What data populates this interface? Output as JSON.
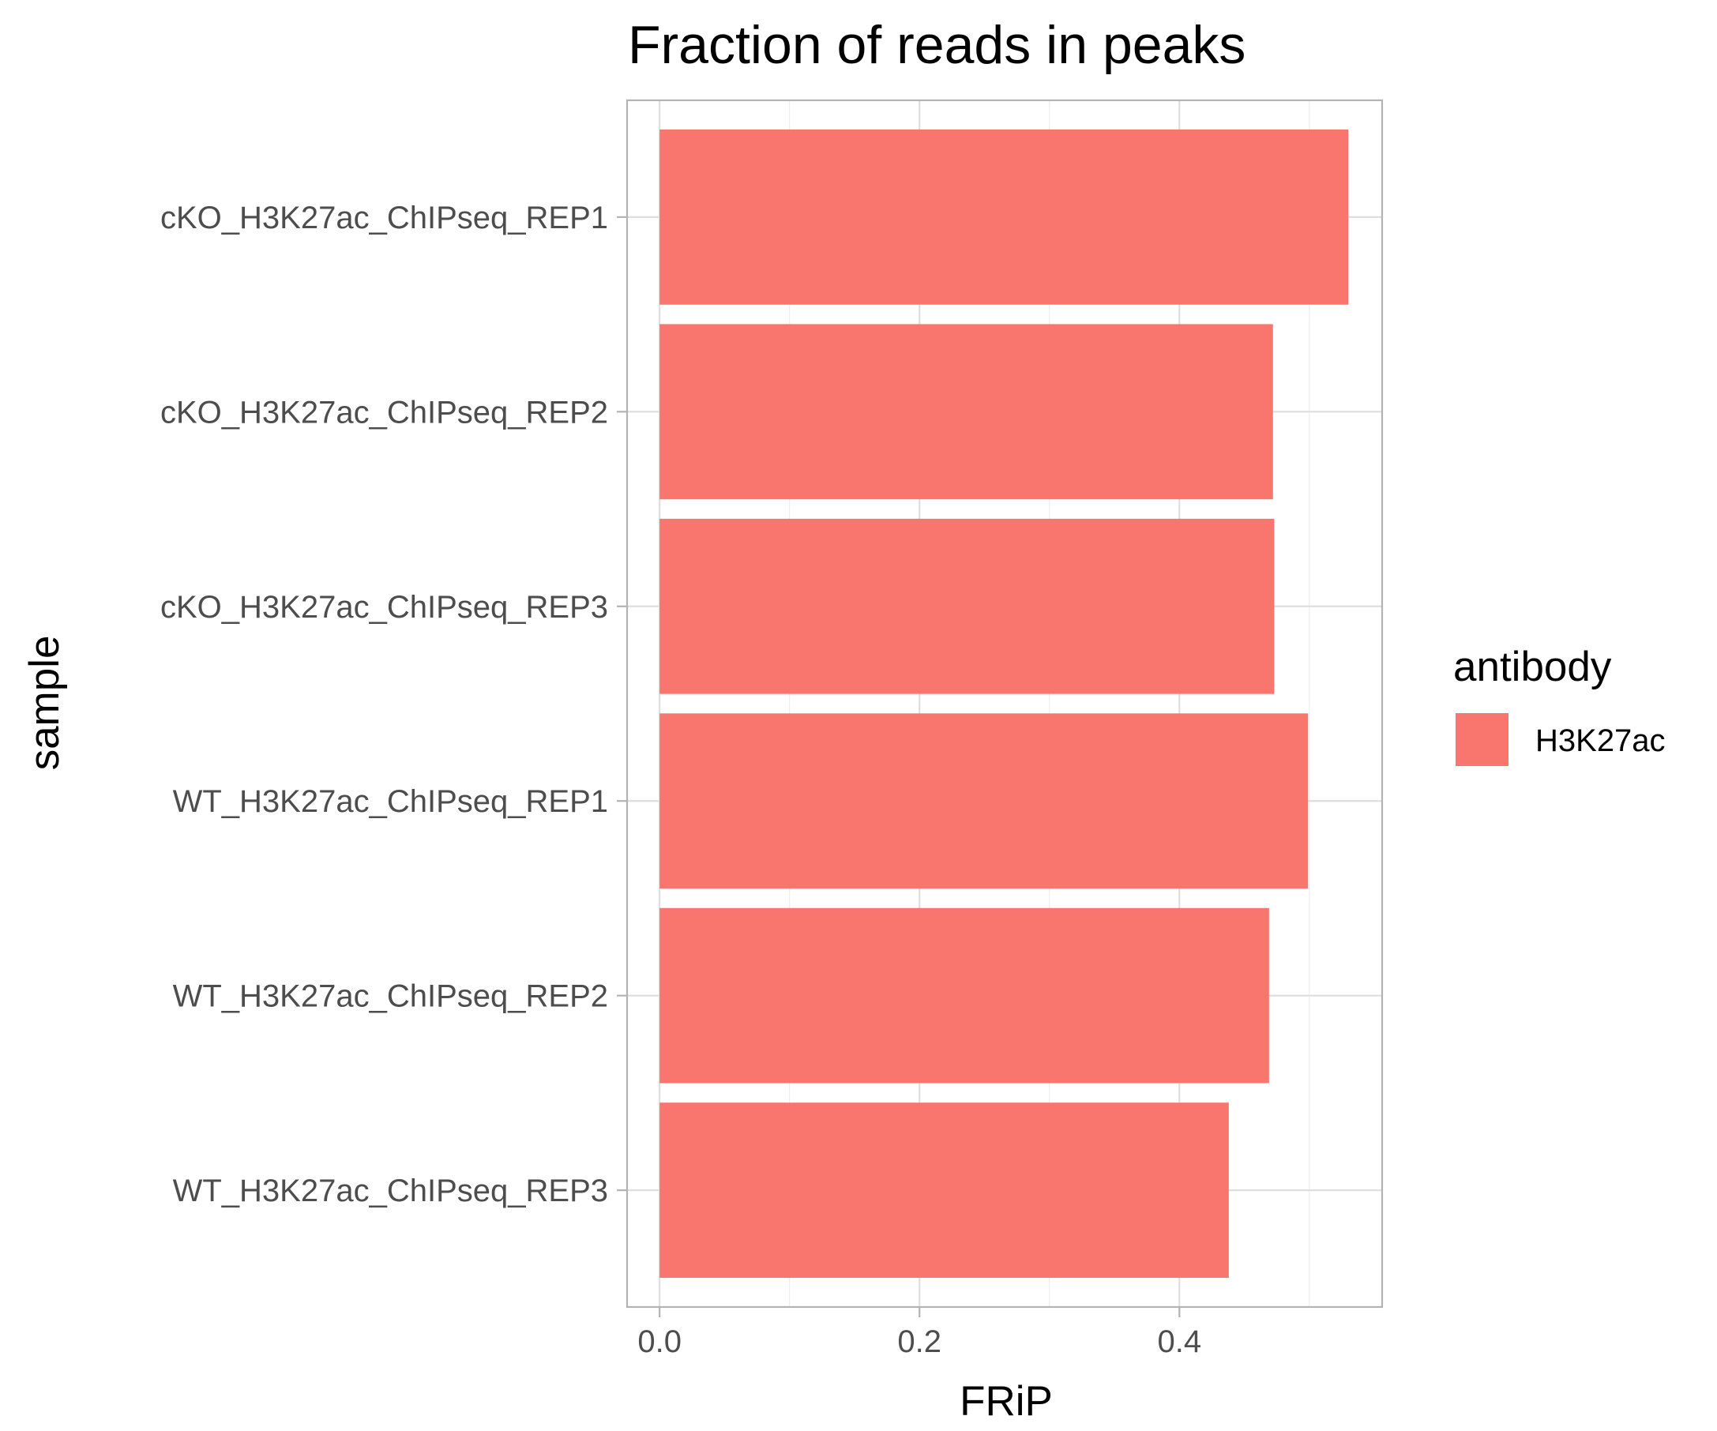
{
  "chart_data": {
    "type": "bar",
    "orientation": "horizontal",
    "title": "Fraction of reads in peaks",
    "xlabel": "FRiP",
    "ylabel": "sample",
    "categories": [
      "cKO_H3K27ac_ChIPseq_REP1",
      "cKO_H3K27ac_ChIPseq_REP2",
      "cKO_H3K27ac_ChIPseq_REP3",
      "WT_H3K27ac_ChIPseq_REP1",
      "WT_H3K27ac_ChIPseq_REP2",
      "WT_H3K27ac_ChIPseq_REP3"
    ],
    "series": [
      {
        "name": "H3K27ac",
        "values": [
          0.53,
          0.472,
          0.473,
          0.499,
          0.469,
          0.438
        ],
        "color": "#F8766D"
      }
    ],
    "xlim": [
      -0.025,
      0.556
    ],
    "x_ticks": [
      0.0,
      0.2,
      0.4
    ],
    "x_tick_labels": [
      "0.0",
      "0.2",
      "0.4"
    ],
    "grid": true,
    "legend": {
      "title": "antibody",
      "position": "right",
      "entries": [
        "H3K27ac"
      ]
    }
  }
}
